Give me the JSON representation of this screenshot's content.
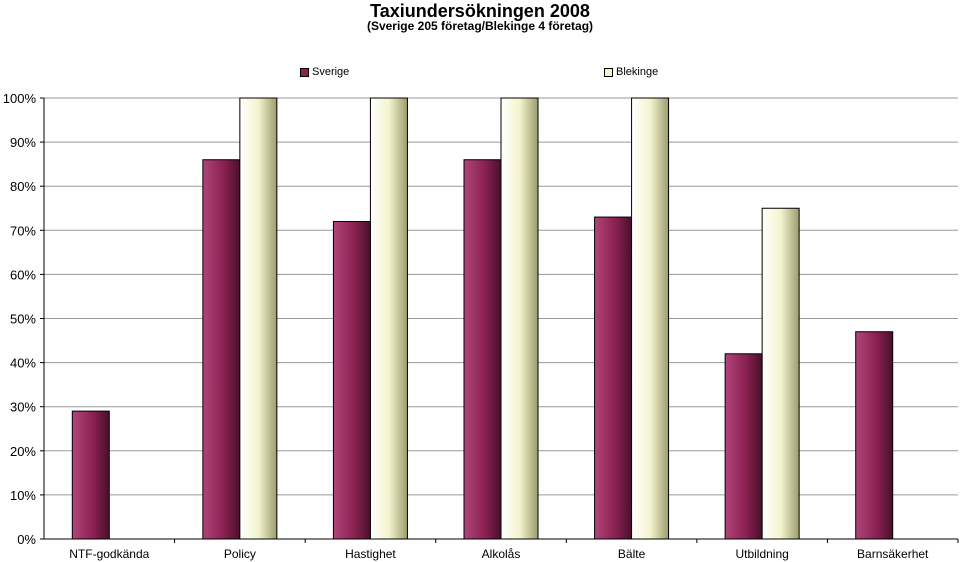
{
  "chart_data": {
    "type": "bar",
    "title": "Taxiundersökningen 2008",
    "subtitle": "(Sverige 205 företag/Blekinge 4 företag)",
    "categories": [
      "NTF-godkända",
      "Policy",
      "Hastighet",
      "Alkolås",
      "Bälte",
      "Utbildning",
      "Barnsäkerhet"
    ],
    "series": [
      {
        "name": "Sverige",
        "values": [
          29,
          86,
          72,
          86,
          73,
          42,
          47
        ],
        "color": "#8b2252"
      },
      {
        "name": "Blekinge",
        "values": [
          0,
          100,
          100,
          100,
          100,
          75,
          0
        ],
        "color": "#f2f2cc"
      }
    ],
    "y_ticks": [
      "0%",
      "10%",
      "20%",
      "30%",
      "40%",
      "50%",
      "60%",
      "70%",
      "80%",
      "90%",
      "100%"
    ],
    "ylim": [
      0,
      100
    ],
    "grid": true,
    "legend": "top"
  }
}
